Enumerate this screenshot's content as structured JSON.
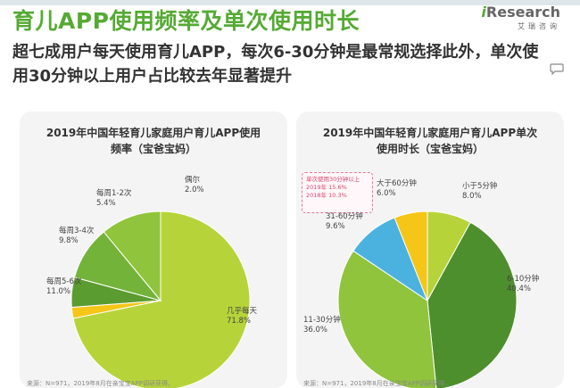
{
  "title": "育儿APP使用频率及单次使用时长",
  "logo": {
    "prefix": "i",
    "word": "Research",
    "sub": "艾瑞咨询"
  },
  "subtitle": "超七成用户每天使用育儿APP，每次6-30分钟是最常规选择此外，单次使用30分钟以上用户占比较去年显著提升",
  "source_text": "来源：N=971，2019年8月在亲宝宝APP调研获得。",
  "chart_data": [
    {
      "type": "pie",
      "title_lines": [
        "2019年中国年轻育儿家庭用户育儿APP使用",
        "频率（宝爸宝妈）"
      ],
      "slices": [
        {
          "label": "几乎每天",
          "value": 71.8,
          "value_label": "71.8%",
          "color": "#b6d43a"
        },
        {
          "label": "偶尔",
          "value": 2.0,
          "value_label": "2.0%",
          "color": "#f5c518"
        },
        {
          "label": "每周1-2次",
          "value": 5.4,
          "value_label": "5.4%",
          "color": "#5b9c30"
        },
        {
          "label": "每周3-4次",
          "value": 9.8,
          "value_label": "9.8%",
          "color": "#74b33a"
        },
        {
          "label": "每周5-6次",
          "value": 11.0,
          "value_label": "11.0%",
          "color": "#90c43c"
        }
      ]
    },
    {
      "type": "pie",
      "title_lines": [
        "2019年中国年轻育儿家庭用户育儿APP单次",
        "使用时长（宝爸宝妈）"
      ],
      "slices": [
        {
          "label": "小于5分钟",
          "value": 8.0,
          "value_label": "8.0%",
          "color": "#b6d43a"
        },
        {
          "label": "6-10分钟",
          "value": 40.4,
          "value_label": "40.4%",
          "color": "#4d8f2c"
        },
        {
          "label": "11-30分钟",
          "value": 36.0,
          "value_label": "36.0%",
          "color": "#8fc43c"
        },
        {
          "label": "31-60分钟",
          "value": 9.6,
          "value_label": "9.6%",
          "color": "#4bb2e0"
        },
        {
          "label": "大于60分钟",
          "value": 6.0,
          "value_label": "6.0%",
          "color": "#f5c518"
        }
      ],
      "annotation": [
        "单次使用30分钟以上",
        "2019年 15.6%",
        "2018年 10.3%"
      ]
    }
  ]
}
